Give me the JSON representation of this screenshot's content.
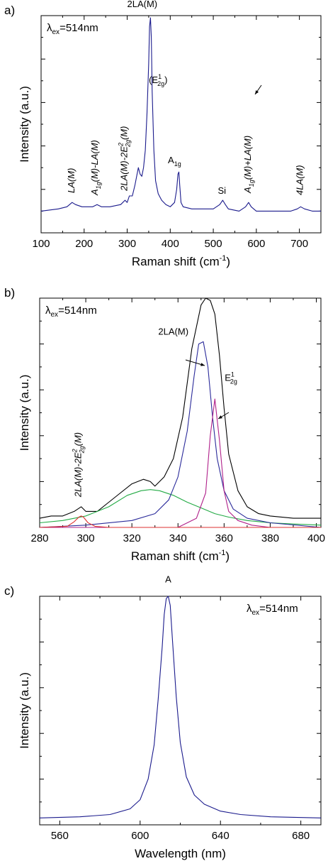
{
  "chart_data": [
    {
      "type": "line",
      "panel_label": "a)",
      "excitation": {
        "lambda": "λ",
        "subscript": "ex",
        "value": "=514nm"
      },
      "xlabel": "Raman shift (cm",
      "xlabel_sup": "-1",
      "xlabel_end": ")",
      "ylabel": "Intensity (a.u.)",
      "xlim": [
        100,
        750
      ],
      "ylim": [
        0,
        1
      ],
      "xticks": [
        100,
        200,
        300,
        400,
        500,
        600,
        700
      ],
      "grid": false,
      "series": [
        {
          "color": "#1a1a8c",
          "x": [
            100,
            140,
            160,
            172,
            180,
            195,
            220,
            230,
            240,
            260,
            285,
            295,
            300,
            305,
            312,
            318,
            322,
            326,
            330,
            334,
            338,
            342,
            346,
            350,
            352,
            354,
            356,
            358,
            362,
            366,
            372,
            380,
            390,
            400,
            410,
            415,
            418,
            420,
            422,
            425,
            430,
            450,
            480,
            500,
            515,
            522,
            528,
            535,
            560,
            575,
            582,
            588,
            600,
            640,
            680,
            695,
            703,
            712,
            730,
            750
          ],
          "y": [
            0.1,
            0.11,
            0.12,
            0.14,
            0.13,
            0.12,
            0.12,
            0.13,
            0.12,
            0.12,
            0.13,
            0.15,
            0.14,
            0.17,
            0.17,
            0.22,
            0.26,
            0.3,
            0.27,
            0.26,
            0.3,
            0.38,
            0.55,
            0.78,
            0.95,
            0.99,
            0.9,
            0.65,
            0.38,
            0.24,
            0.18,
            0.15,
            0.13,
            0.12,
            0.14,
            0.2,
            0.27,
            0.28,
            0.22,
            0.14,
            0.12,
            0.11,
            0.11,
            0.11,
            0.13,
            0.15,
            0.13,
            0.11,
            0.1,
            0.12,
            0.14,
            0.12,
            0.1,
            0.1,
            0.1,
            0.11,
            0.12,
            0.11,
            0.1,
            0.1
          ]
        }
      ],
      "annotations": [
        {
          "base": "LA(M)",
          "sub": "",
          "tail": "",
          "italic": true,
          "rotated": true,
          "x": 177,
          "y": 0.17
        },
        {
          "base": "A",
          "sub": "1g",
          "tail": "(M)-LA(M)",
          "italic": true,
          "rotated": true,
          "x": 232,
          "y": 0.16
        },
        {
          "base": "2LA(M)-2E",
          "sub": "2g",
          "sup": "2",
          "tail": "(M)",
          "italic": true,
          "rotated": true,
          "x": 300,
          "y": 0.18
        },
        {
          "base": "2LA(M)",
          "sub": "",
          "tail": "",
          "italic": false,
          "rotated": false,
          "x": 335,
          "y": 1.04
        },
        {
          "base": "(E",
          "sub": "2g",
          "sup": "1",
          "tail": ")",
          "italic": false,
          "rotated": false,
          "x": 372,
          "y": 0.69
        },
        {
          "base": "A",
          "sub": "1g",
          "tail": "",
          "italic": false,
          "rotated": false,
          "x": 410,
          "y": 0.32
        },
        {
          "base": "Si",
          "sub": "",
          "tail": "",
          "italic": false,
          "rotated": false,
          "x": 520,
          "y": 0.18
        },
        {
          "base": "A",
          "sub": "1g",
          "tail": "(M)+LA(M)",
          "italic": true,
          "rotated": true,
          "x": 587,
          "y": 0.17
        },
        {
          "base": "4LA(M)",
          "sub": "",
          "tail": "",
          "italic": true,
          "rotated": true,
          "x": 708,
          "y": 0.16
        }
      ]
    },
    {
      "type": "line",
      "panel_label": "b)",
      "excitation": {
        "lambda": "λ",
        "subscript": "ex",
        "value": "=514nm"
      },
      "xlabel": "Raman shift (cm",
      "xlabel_sup": "-1",
      "xlabel_end": ")",
      "ylabel": "Intensity (a.u.)",
      "xlim": [
        280,
        402
      ],
      "ylim": [
        0,
        1
      ],
      "xticks": [
        280,
        300,
        320,
        340,
        360,
        380,
        400
      ],
      "grid": false,
      "series": [
        {
          "color": "#000000",
          "x": [
            280,
            285,
            290,
            295,
            298,
            300,
            305,
            310,
            315,
            320,
            325,
            328,
            330,
            334,
            338,
            342,
            346,
            350,
            352,
            354,
            356,
            358,
            360,
            362,
            366,
            370,
            375,
            380,
            390,
            400,
            402
          ],
          "y": [
            0.04,
            0.05,
            0.05,
            0.07,
            0.09,
            0.07,
            0.07,
            0.11,
            0.15,
            0.19,
            0.21,
            0.2,
            0.18,
            0.22,
            0.3,
            0.48,
            0.78,
            0.97,
            1.0,
            0.99,
            0.93,
            0.75,
            0.52,
            0.32,
            0.16,
            0.09,
            0.06,
            0.05,
            0.04,
            0.04,
            0.04
          ]
        },
        {
          "color": "#22aa44",
          "x": [
            280,
            290,
            300,
            310,
            318,
            324,
            328,
            332,
            338,
            344,
            350,
            356,
            362,
            370,
            380,
            390,
            402
          ],
          "y": [
            0.02,
            0.03,
            0.05,
            0.09,
            0.14,
            0.16,
            0.165,
            0.16,
            0.14,
            0.11,
            0.085,
            0.06,
            0.045,
            0.03,
            0.02,
            0.015,
            0.01
          ]
        },
        {
          "color": "#2a2a9a",
          "x": [
            280,
            300,
            320,
            330,
            336,
            340,
            344,
            347,
            349,
            351,
            353,
            355,
            357,
            360,
            364,
            370,
            380,
            402
          ],
          "y": [
            0.0,
            0.01,
            0.03,
            0.06,
            0.12,
            0.22,
            0.42,
            0.66,
            0.8,
            0.81,
            0.7,
            0.48,
            0.3,
            0.16,
            0.08,
            0.04,
            0.02,
            0.0
          ]
        },
        {
          "color": "#b0208a",
          "x": [
            280,
            340,
            348,
            352,
            354,
            356,
            358,
            360,
            362,
            366,
            372,
            380,
            402
          ],
          "y": [
            0.0,
            0.0,
            0.04,
            0.15,
            0.4,
            0.56,
            0.38,
            0.16,
            0.07,
            0.03,
            0.01,
            0.0,
            0.0
          ]
        },
        {
          "color": "#dd3030",
          "x": [
            280,
            292,
            295,
            297,
            298,
            299,
            301,
            304,
            310,
            402
          ],
          "y": [
            0.0,
            0.005,
            0.025,
            0.045,
            0.05,
            0.045,
            0.02,
            0.005,
            0.0,
            0.0
          ]
        }
      ],
      "annotations": [
        {
          "base": "2LA(M)-2E",
          "sub": "2g",
          "sup": "2",
          "tail": "(M)",
          "italic": true,
          "rotated": true,
          "x": 298,
          "y": 0.12
        },
        {
          "base": "2LA(M)",
          "sub": "",
          "tail": "",
          "italic": false,
          "rotated": false,
          "x": 338,
          "y": 0.84
        },
        {
          "base": "E",
          "sub": "2g",
          "sup": "1",
          "tail": "",
          "italic": false,
          "rotated": false,
          "x": 363,
          "y": 0.64
        }
      ]
    },
    {
      "type": "line",
      "panel_label": "c)",
      "excitation": {
        "lambda": "λ",
        "subscript": "ex",
        "value": "=514nm"
      },
      "xlabel": "Wavelength (nm)",
      "xlabel_sup": "",
      "xlabel_end": "",
      "ylabel": "Intensity (a.u.)",
      "xlim": [
        550,
        690
      ],
      "ylim": [
        0,
        1
      ],
      "xticks": [
        560,
        600,
        640,
        680
      ],
      "grid": false,
      "series": [
        {
          "color": "#1a1a8c",
          "x": [
            550,
            570,
            585,
            595,
            600,
            604,
            607,
            609,
            611,
            612,
            613,
            614,
            615,
            616,
            618,
            620,
            623,
            627,
            632,
            640,
            650,
            665,
            690
          ],
          "y": [
            0.03,
            0.035,
            0.045,
            0.07,
            0.11,
            0.2,
            0.35,
            0.55,
            0.78,
            0.92,
            0.99,
            1.0,
            0.96,
            0.82,
            0.56,
            0.36,
            0.21,
            0.13,
            0.09,
            0.06,
            0.045,
            0.035,
            0.03
          ]
        }
      ],
      "annotations": [
        {
          "base": "A",
          "sub": "",
          "tail": "",
          "italic": false,
          "rotated": false,
          "x": 614,
          "y": 1.06
        }
      ]
    }
  ]
}
